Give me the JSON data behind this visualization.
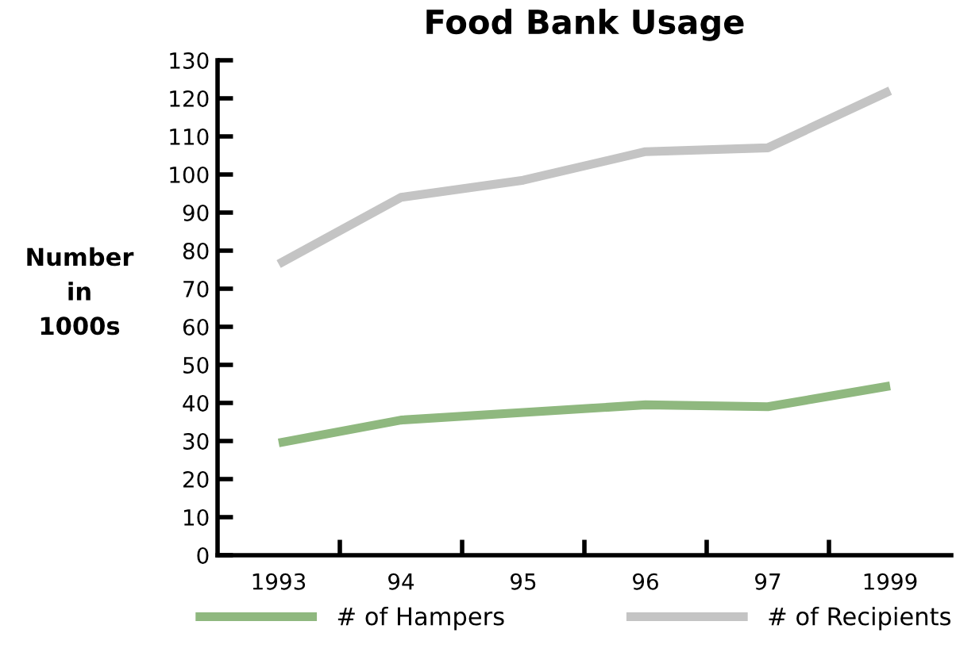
{
  "chart_data": {
    "type": "line",
    "title": "Food Bank Usage",
    "ylabel": "Number\nin\n1000s",
    "categories": [
      "1993",
      "94",
      "95",
      "96",
      "97",
      "1999"
    ],
    "series": [
      {
        "name": "# of Hampers",
        "color": "#8fb87f",
        "values": [
          29.5,
          35.5,
          37.5,
          39.5,
          39,
          44.5
        ]
      },
      {
        "name": "# of Recipients",
        "color": "#c4c4c4",
        "values": [
          76.5,
          94,
          98.5,
          106,
          107,
          122
        ]
      }
    ],
    "ylim": [
      0,
      130
    ],
    "yticks": [
      0,
      10,
      20,
      30,
      40,
      50,
      60,
      70,
      80,
      90,
      100,
      110,
      120,
      130
    ],
    "grid": false,
    "legend": "bottom",
    "marker": "none",
    "line_style": "solid"
  }
}
